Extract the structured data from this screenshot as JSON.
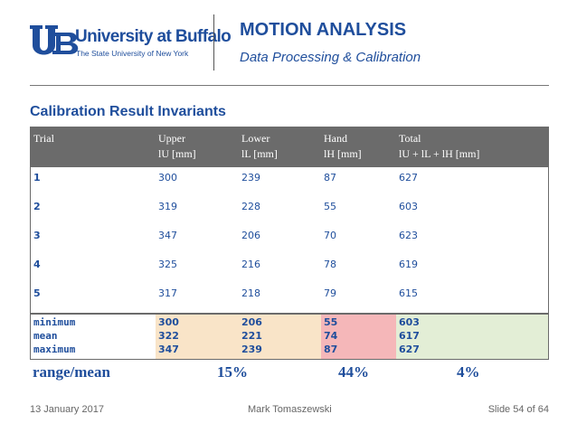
{
  "header": {
    "logo_line1": "University at Buffalo",
    "logo_line2": "The State University of New York",
    "title": "MOTION ANALYSIS",
    "subtitle": "Data Processing & Calibration"
  },
  "section_title": "Calibration Result Invariants",
  "table": {
    "headers": [
      {
        "line1": "Trial",
        "line2": ""
      },
      {
        "line1": "Upper",
        "line2": "lU [mm]"
      },
      {
        "line1": "Lower",
        "line2": "lL [mm]"
      },
      {
        "line1": "Hand",
        "line2": "lH [mm]"
      },
      {
        "line1": "Total",
        "line2": "lU + lL + lH [mm]"
      }
    ],
    "rows": [
      [
        "1",
        "300",
        "239",
        "87",
        "627"
      ],
      [
        "2",
        "319",
        "228",
        "55",
        "603"
      ],
      [
        "3",
        "347",
        "206",
        "70",
        "623"
      ],
      [
        "4",
        "325",
        "216",
        "78",
        "619"
      ],
      [
        "5",
        "317",
        "218",
        "79",
        "615"
      ]
    ],
    "stats": {
      "labels": [
        "minimum",
        "mean",
        "maximum"
      ],
      "upper": [
        "300",
        "322",
        "347"
      ],
      "lower": [
        "206",
        "221",
        "239"
      ],
      "hand": [
        "55",
        "74",
        "87"
      ],
      "total": [
        "603",
        "617",
        "627"
      ]
    },
    "stat_colors": {
      "upper": "#f9e4c8",
      "lower": "#f9e4c8",
      "hand": "#f5b7b9",
      "total": "#e3eed6",
      "label": "#ffffff"
    }
  },
  "range_row": {
    "label": "range/mean",
    "upper_lower": "15%",
    "hand": "44%",
    "total": "4%"
  },
  "footer": {
    "date": "13 January 2017",
    "author": "Mark Tomaszewski",
    "slide": "Slide 54 of 64"
  }
}
